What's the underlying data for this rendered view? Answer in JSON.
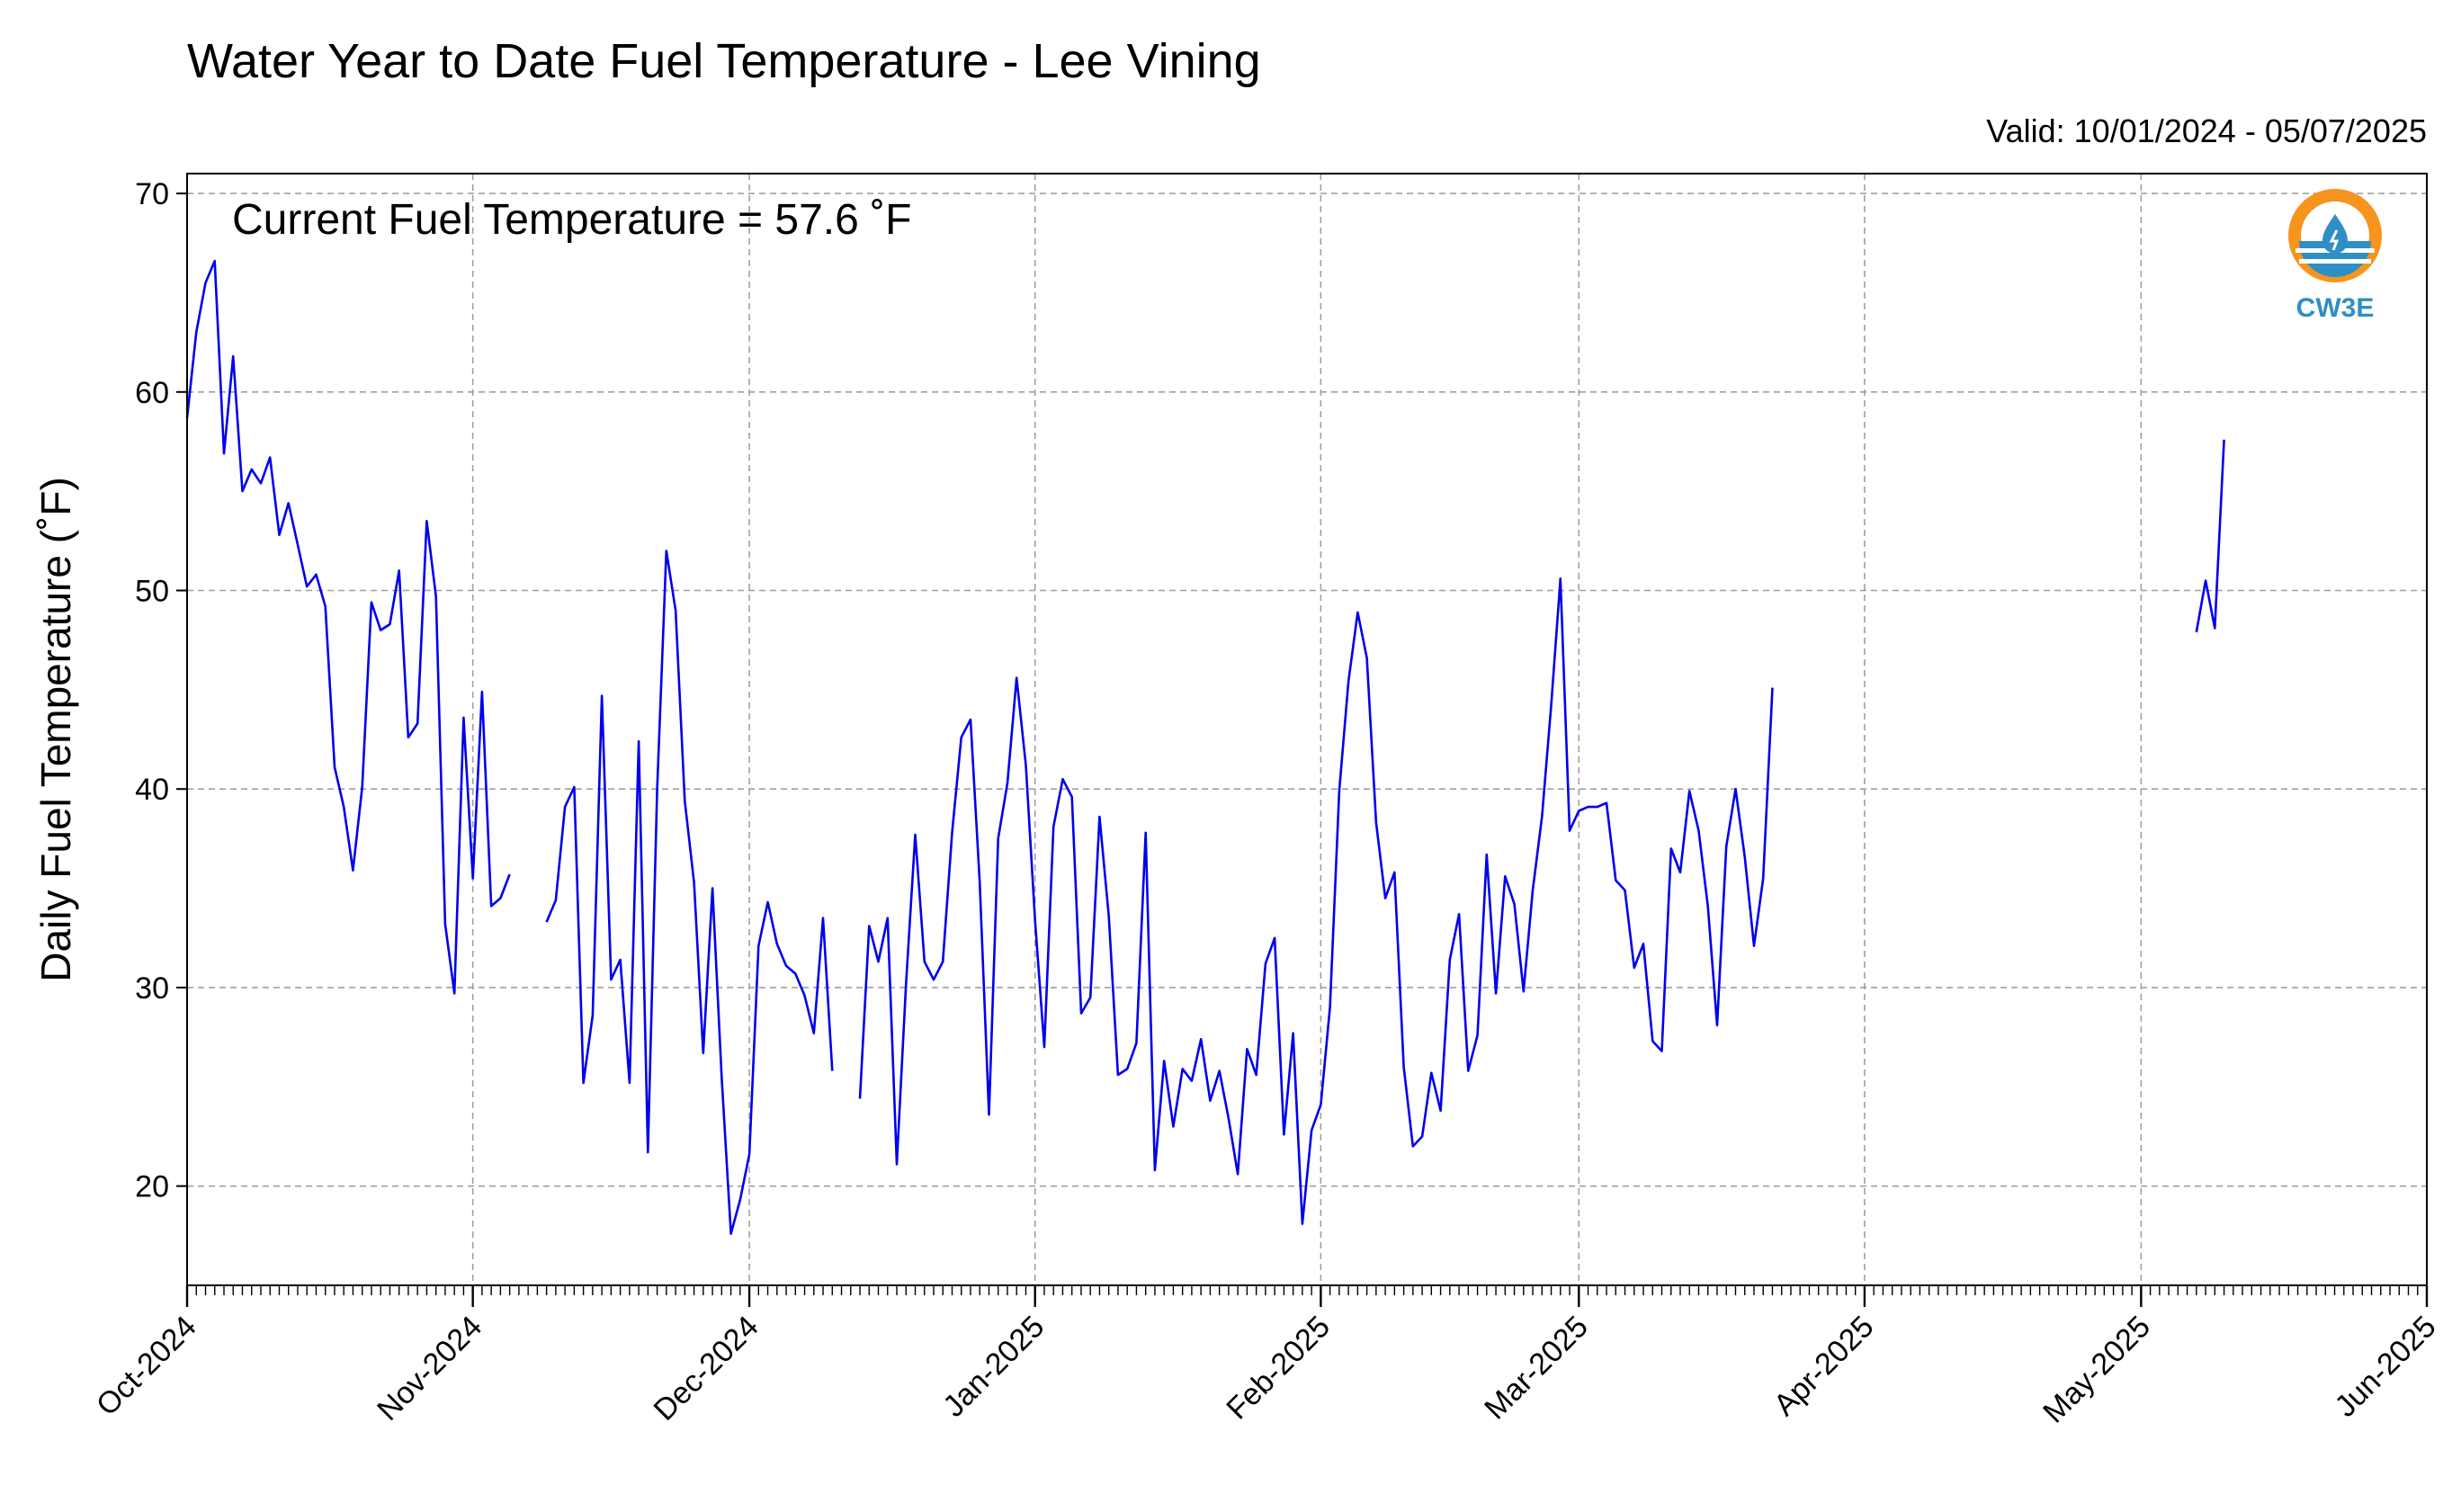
{
  "chart_data": {
    "type": "line",
    "title": "Water Year to Date Fuel Temperature - Lee Vining",
    "subtitle": "Valid: 10/01/2024 - 05/07/2025",
    "annotation": "Current Fuel Temperature = 57.6 ˚F",
    "xlabel": "",
    "ylabel": "Daily Fuel Temperature (˚F)",
    "x_start": "2024-10-01",
    "xlim": [
      "2024-10-01",
      "2025-06-01"
    ],
    "ylim": [
      15,
      71
    ],
    "y_ticks": [
      20,
      30,
      40,
      50,
      60,
      70
    ],
    "x_ticks": [
      {
        "date": "2024-10-01",
        "label": "Oct-2024"
      },
      {
        "date": "2024-11-01",
        "label": "Nov-2024"
      },
      {
        "date": "2024-12-01",
        "label": "Dec-2024"
      },
      {
        "date": "2025-01-01",
        "label": "Jan-2025"
      },
      {
        "date": "2025-02-01",
        "label": "Feb-2025"
      },
      {
        "date": "2025-03-01",
        "label": "Mar-2025"
      },
      {
        "date": "2025-04-01",
        "label": "Apr-2025"
      },
      {
        "date": "2025-05-01",
        "label": "May-2025"
      },
      {
        "date": "2025-06-01",
        "label": "Jun-2025"
      }
    ],
    "grid": true,
    "line_color": "#0000ee",
    "series": [
      {
        "values": [
          58.7,
          63.0,
          65.5,
          66.6,
          56.9,
          61.8,
          55.0,
          56.1,
          55.4,
          56.7,
          52.8,
          54.4,
          52.3,
          50.2,
          50.8,
          49.2,
          41.1,
          39.1,
          35.9,
          40.1,
          49.4,
          48.0,
          48.3,
          51.0,
          42.6,
          43.3,
          53.5,
          49.7,
          33.2,
          29.7,
          43.6,
          35.5,
          44.9,
          34.1,
          34.5,
          35.7,
          null,
          null,
          null,
          33.3,
          34.4,
          39.1,
          40.1,
          25.2,
          28.6,
          44.7,
          30.4,
          31.4,
          25.2,
          42.4,
          21.7,
          40.0,
          52.0,
          49.0,
          39.4,
          35.3,
          26.7,
          35.0,
          25.5,
          17.6,
          19.3,
          21.6,
          32.1,
          34.3,
          32.2,
          31.1,
          30.7,
          29.6,
          27.7,
          33.5,
          25.8,
          null,
          null,
          24.4,
          33.1,
          31.3,
          33.5,
          21.1,
          30.2,
          37.7,
          31.3,
          30.4,
          31.3,
          37.8,
          42.6,
          43.5,
          35.3,
          23.6,
          37.5,
          40.3,
          45.6,
          41.2,
          33.4,
          27.0,
          38.1,
          40.5,
          39.6,
          28.7,
          29.5,
          38.6,
          33.6,
          25.6,
          25.9,
          27.2,
          37.8,
          20.8,
          26.3,
          23.0,
          25.9,
          25.3,
          27.4,
          24.3,
          25.8,
          23.4,
          20.6,
          26.9,
          25.6,
          31.2,
          32.5,
          22.6,
          27.7,
          18.1,
          22.8,
          24.1,
          29.0,
          39.9,
          45.4,
          48.9,
          46.6,
          38.3,
          34.5,
          35.8,
          26.0,
          22.0,
          22.5,
          25.7,
          23.8,
          31.4,
          33.7,
          25.8,
          27.6,
          36.7,
          29.7,
          35.6,
          34.2,
          29.8,
          34.9,
          38.6,
          44.2,
          50.6,
          37.9,
          38.9,
          39.1,
          39.1,
          39.3,
          35.4,
          34.9,
          31.0,
          32.2,
          27.3,
          26.8,
          37.0,
          35.8,
          39.9,
          37.9,
          34.1,
          28.1,
          37.1,
          40.0,
          36.6,
          32.1,
          35.5,
          45.1,
          null,
          null,
          null,
          null,
          null,
          null,
          null,
          null,
          null,
          null,
          null,
          null,
          null,
          null,
          null,
          null,
          null,
          null,
          null,
          null,
          null,
          null,
          null,
          null,
          null,
          null,
          null,
          null,
          null,
          null,
          null,
          null,
          null,
          null,
          null,
          null,
          null,
          null,
          null,
          null,
          null,
          null,
          null,
          null,
          null,
          47.9,
          50.5,
          48.1,
          57.6
        ]
      }
    ]
  },
  "logo": {
    "text": "CW3E",
    "accent": "#f7941d",
    "primary": "#2e8fc4"
  }
}
